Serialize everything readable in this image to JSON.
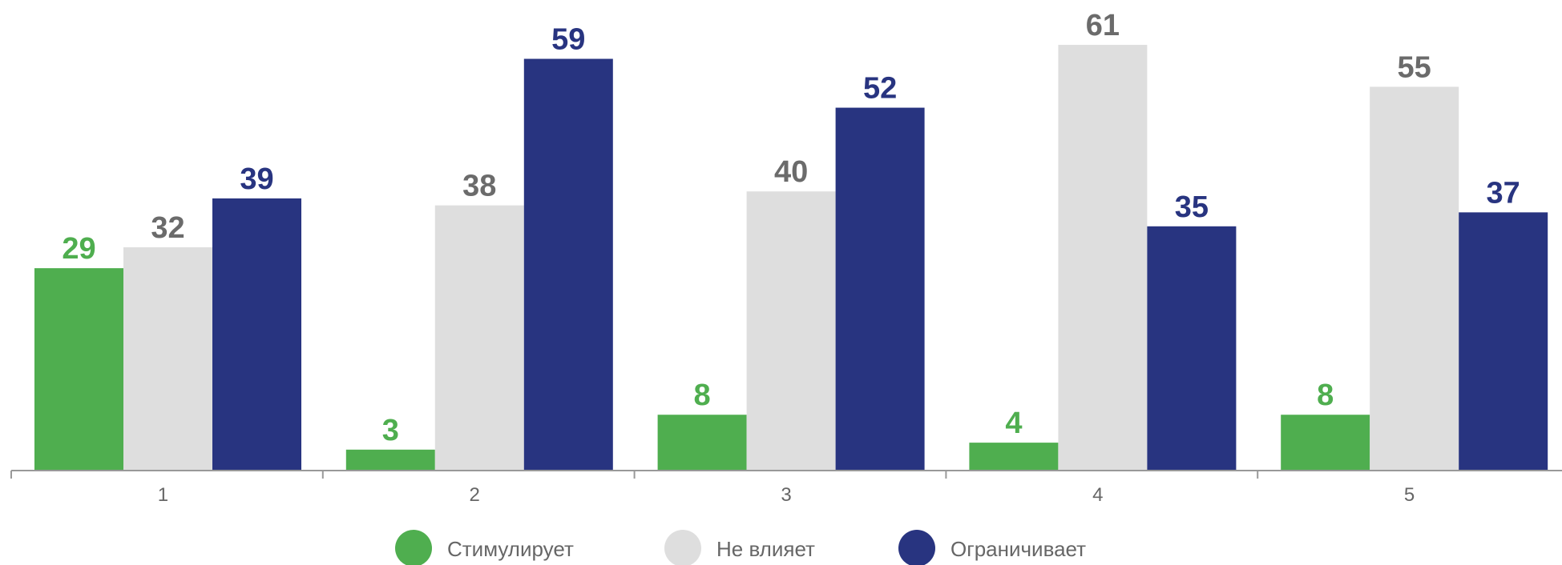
{
  "chart_data": {
    "type": "bar",
    "categories": [
      "1",
      "2",
      "3",
      "4",
      "5"
    ],
    "series": [
      {
        "name": "Стимулирует",
        "color": "#4fae4f",
        "label_color": "#4fae4f",
        "values": [
          29,
          3,
          8,
          4,
          8
        ]
      },
      {
        "name": "Не влияет",
        "color": "#dedede",
        "label_color": "#6b6b6b",
        "values": [
          32,
          38,
          40,
          61,
          55
        ]
      },
      {
        "name": "Ограничивает",
        "color": "#283480",
        "label_color": "#283480",
        "values": [
          39,
          59,
          52,
          35,
          37
        ]
      }
    ],
    "ylim": [
      0,
      68
    ],
    "grid": false,
    "legend_position": "bottom"
  }
}
